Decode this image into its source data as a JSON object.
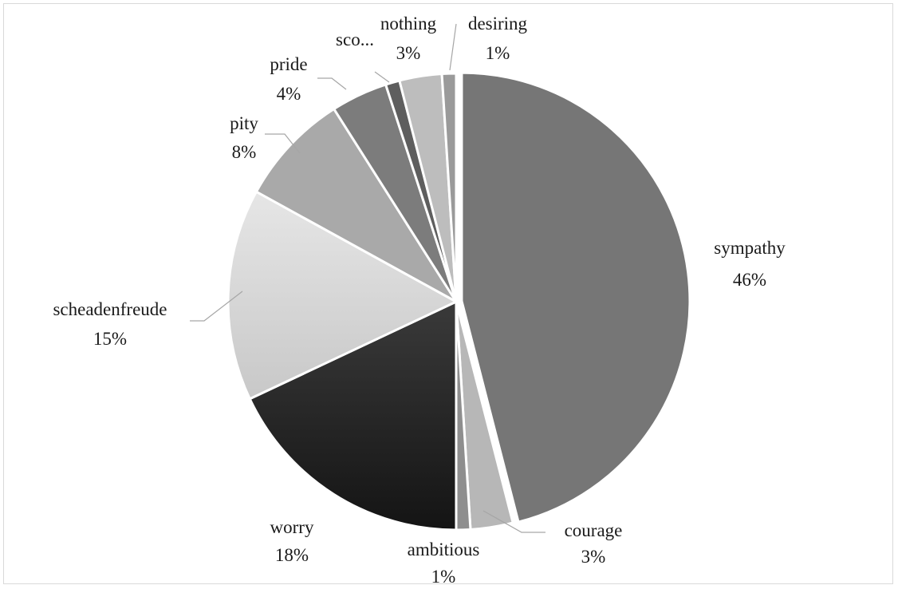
{
  "chart_data": {
    "type": "pie",
    "title": "",
    "start_angle_deg": 0,
    "slices": [
      {
        "label": "sympathy",
        "percent_label": "46%",
        "value": 46,
        "color": "#767676"
      },
      {
        "label": "courage",
        "percent_label": "3%",
        "value": 3,
        "color": "#b7b7b7"
      },
      {
        "label": "ambitious",
        "percent_label": "1%",
        "value": 1,
        "color": "#8e8e8e"
      },
      {
        "label": "worry",
        "percent_label": "18%",
        "value": 18,
        "color": "#232323"
      },
      {
        "label": "scheadenfreude",
        "percent_label": "15%",
        "value": 15,
        "color": "#dadada"
      },
      {
        "label": "pity",
        "percent_label": "8%",
        "value": 8,
        "color": "#a9a9a9"
      },
      {
        "label": "pride",
        "percent_label": "4%",
        "value": 4,
        "color": "#7c7c7c"
      },
      {
        "label": "sco...",
        "percent_label": "",
        "value": 1,
        "color": "#5e5e5e"
      },
      {
        "label": "nothing",
        "percent_label": "3%",
        "value": 3,
        "color": "#bdbdbd"
      },
      {
        "label": "desiring",
        "percent_label": "1%",
        "value": 1,
        "color": "#9a9a9a"
      }
    ]
  }
}
